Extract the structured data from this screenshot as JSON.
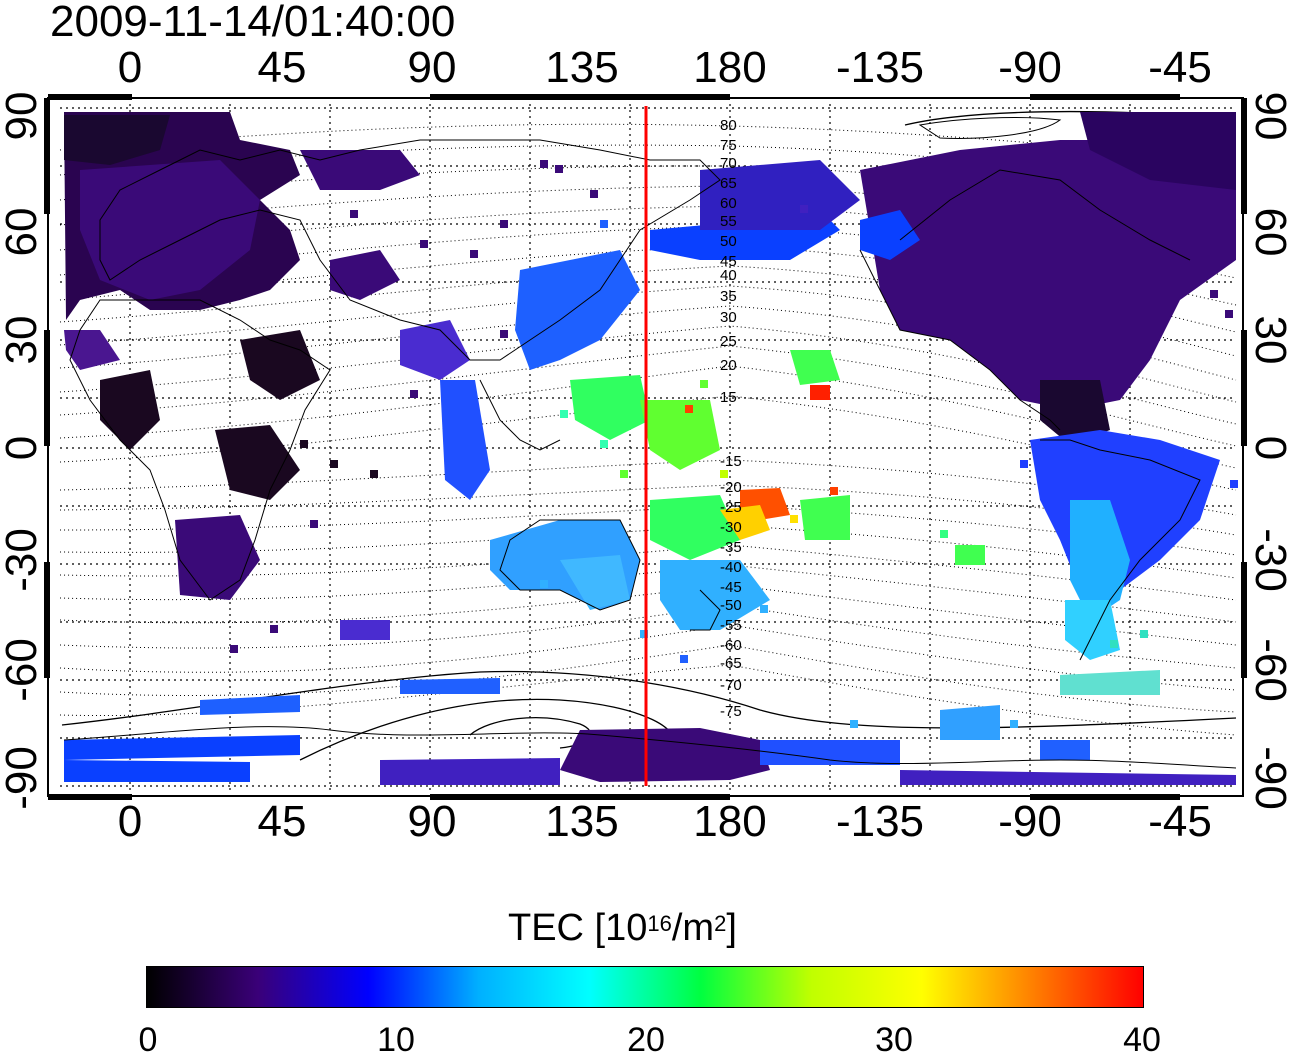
{
  "title": "2009-11-14/01:40:00",
  "map": {
    "top_lon_labels": [
      "0",
      "45",
      "90",
      "135",
      "180",
      "-135",
      "-90",
      "-45"
    ],
    "bottom_lon_labels": [
      "0",
      "45",
      "90",
      "135",
      "180",
      "-135",
      "-90",
      "-45"
    ],
    "left_lat_labels": [
      "90",
      "60",
      "30",
      "0",
      "-30",
      "-60",
      "-90"
    ],
    "right_lat_labels": [
      "90",
      "60",
      "30",
      "0",
      "-30",
      "-60",
      "-90"
    ],
    "magnetic_latitude_labels": [
      "80",
      "75",
      "70",
      "65",
      "60",
      "55",
      "50",
      "45",
      "40",
      "35",
      "30",
      "25",
      "20",
      "15",
      "-15",
      "-20",
      "-25",
      "-30",
      "-35",
      "-40",
      "-45",
      "-50",
      "-55",
      "-60",
      "-65",
      "-70",
      "-75"
    ],
    "marker_line_color": "#ff0000"
  },
  "colorbar": {
    "title_prefix": "TEC  [10",
    "title_exp1": "16",
    "title_mid": "/m",
    "title_exp2": "2",
    "title_suffix": "]",
    "tick_labels": [
      "0",
      "10",
      "20",
      "30",
      "40"
    ],
    "colors": [
      "#000000",
      "#3a0078",
      "#0000ff",
      "#00b0ff",
      "#00ffff",
      "#00ff40",
      "#c0ff00",
      "#ffff00",
      "#ff8000",
      "#ff0000"
    ]
  }
}
